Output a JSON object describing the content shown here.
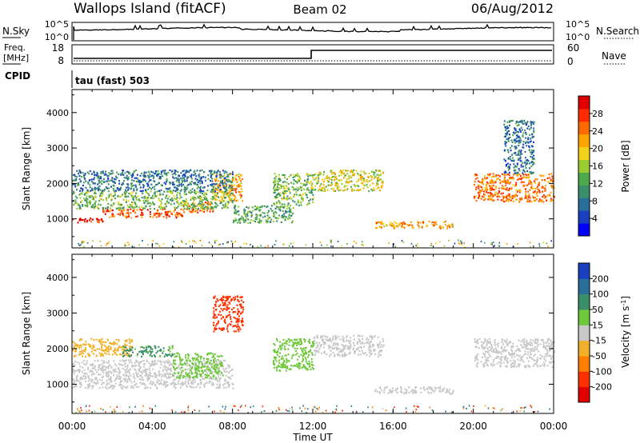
{
  "header": {
    "site": "Wallops Island (fitACF)",
    "beam": "Beam 02",
    "date": "06/Aug/2012"
  },
  "panels": {
    "nsky_label": "N.Sky",
    "nsky_ticks": [
      "10^5",
      "10^0"
    ],
    "nsearch_label": "N.Search",
    "nsearch_ticks": [
      "10^5",
      "10^0"
    ],
    "freq_label_line1": "Freq.",
    "freq_label_line2": "[MHz]",
    "freq_ticks": [
      "18",
      "8"
    ],
    "nave_label": "Nave",
    "nave_ticks": [
      "60",
      "0"
    ],
    "cpid_label": "CPID",
    "cpid_value": "tau (fast) 503"
  },
  "chart_data": [
    {
      "type": "heatmap",
      "name_panel": "power",
      "ylabel": "Slant Range [km]",
      "xlabel": "Time UT",
      "x_ticks": [
        "00:00",
        "04:00",
        "08:00",
        "12:00",
        "16:00",
        "20:00",
        "00:00"
      ],
      "x_range_hours": [
        0,
        24
      ],
      "y_ticks": [
        1000,
        2000,
        3000,
        4000
      ],
      "ylim": [
        180,
        4650
      ],
      "colorbar": {
        "label": "Power [dB]",
        "ticks": [
          "28",
          "24",
          "20",
          "16",
          "12",
          "8",
          "4"
        ],
        "range": [
          0,
          32
        ],
        "colors": [
          "#0000ff",
          "#1a3fbf",
          "#2a6e9a",
          "#3a8f6a",
          "#4fa84a",
          "#9acd32",
          "#f2d21a",
          "#ffa500",
          "#ff6a00",
          "#ff2a00",
          "#e00000"
        ]
      },
      "echo_regions": [
        {
          "t0": 0.0,
          "t1": 1.5,
          "r0": 900,
          "r1": 1050,
          "value": 30
        },
        {
          "t0": 1.5,
          "t1": 5.5,
          "r0": 1050,
          "r1": 1300,
          "value": 26
        },
        {
          "t0": 5.5,
          "t1": 7.0,
          "r0": 1200,
          "r1": 1500,
          "value": 24
        },
        {
          "t0": 7.0,
          "t1": 8.5,
          "r0": 1500,
          "r1": 2300,
          "value": 22
        },
        {
          "t0": 0.0,
          "t1": 8.0,
          "r0": 1300,
          "r1": 1800,
          "value": 14
        },
        {
          "t0": 0.0,
          "t1": 8.0,
          "r0": 1800,
          "r1": 2400,
          "value": 8
        },
        {
          "t0": 8.0,
          "t1": 11.0,
          "r0": 900,
          "r1": 1400,
          "value": 12
        },
        {
          "t0": 10.0,
          "t1": 12.0,
          "r0": 1400,
          "r1": 2300,
          "value": 14
        },
        {
          "t0": 12.0,
          "t1": 15.5,
          "r0": 1800,
          "r1": 2400,
          "value": 18
        },
        {
          "t0": 15.0,
          "t1": 19.0,
          "r0": 750,
          "r1": 950,
          "value": 22
        },
        {
          "t0": 20.0,
          "t1": 24.0,
          "r0": 1500,
          "r1": 2300,
          "value": 24
        },
        {
          "t0": 21.5,
          "t1": 23.0,
          "r0": 2300,
          "r1": 3800,
          "value": 8
        }
      ]
    },
    {
      "type": "heatmap",
      "name_panel": "velocity",
      "ylabel": "Slant Range [km]",
      "xlabel": "Time UT",
      "x_ticks": [
        "00:00",
        "04:00",
        "08:00",
        "12:00",
        "16:00",
        "20:00",
        "00:00"
      ],
      "x_range_hours": [
        0,
        24
      ],
      "y_ticks": [
        1000,
        2000,
        3000,
        4000
      ],
      "ylim": [
        180,
        4650
      ],
      "colorbar": {
        "label_main": "Velocity",
        "label_unit": "[m s",
        "label_exp": "-1",
        "ticks": [
          "200",
          "100",
          "50",
          "15",
          "-15",
          "-50",
          "-100",
          "-200"
        ],
        "colors": [
          "#1a3fbf",
          "#2a6e9a",
          "#3a8f6a",
          "#6ec83a",
          "#c8c8c8",
          "#f2b02a",
          "#ff8000",
          "#ff3000",
          "#e00000"
        ]
      },
      "echo_regions": [
        {
          "t0": 0.0,
          "t1": 8.0,
          "r0": 900,
          "r1": 1700,
          "value": 0
        },
        {
          "t0": 0.0,
          "t1": 3.0,
          "r0": 1800,
          "r1": 2300,
          "value": -30
        },
        {
          "t0": 2.5,
          "t1": 5.0,
          "r0": 1800,
          "r1": 2100,
          "value": 60
        },
        {
          "t0": 5.0,
          "t1": 7.5,
          "r0": 1200,
          "r1": 1900,
          "value": 30
        },
        {
          "t0": 7.0,
          "t1": 8.5,
          "r0": 2500,
          "r1": 3500,
          "value": -150
        },
        {
          "t0": 10.0,
          "t1": 12.0,
          "r0": 1400,
          "r1": 2300,
          "value": 30
        },
        {
          "t0": 12.0,
          "t1": 15.5,
          "r0": 1800,
          "r1": 2400,
          "value": 0
        },
        {
          "t0": 15.0,
          "t1": 19.0,
          "r0": 750,
          "r1": 950,
          "value": 0
        },
        {
          "t0": 20.0,
          "t1": 24.0,
          "r0": 1500,
          "r1": 2300,
          "value": 0
        }
      ]
    }
  ]
}
